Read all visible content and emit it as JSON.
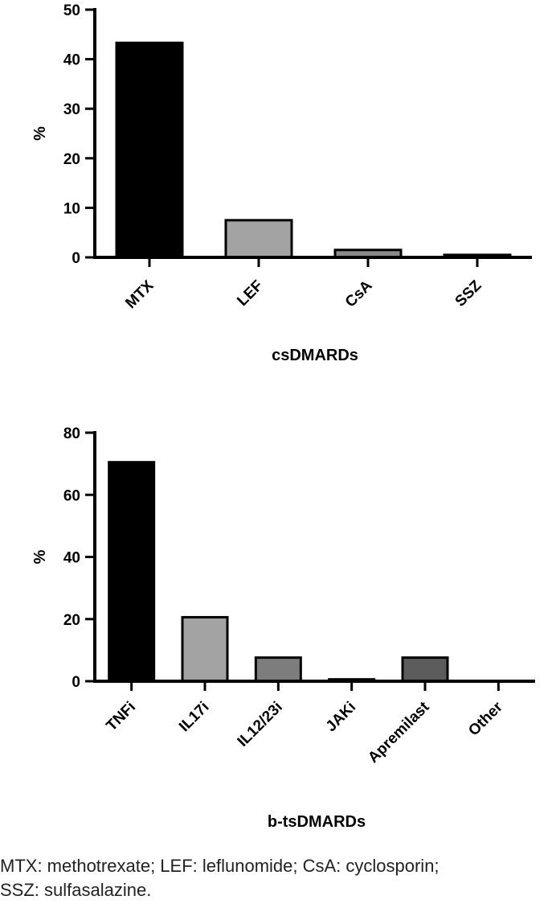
{
  "chart_data": [
    {
      "type": "bar",
      "title": "",
      "xlabel": "csDMARDs",
      "ylabel": "%",
      "ylim": [
        0,
        50
      ],
      "yticks": [
        0,
        10,
        20,
        30,
        40,
        50
      ],
      "categories": [
        "MTX",
        "LEF",
        "CsA",
        "SSZ"
      ],
      "values": [
        43.3,
        7.5,
        1.5,
        0.5
      ],
      "colors": [
        "#000000",
        "#a3a3a3",
        "#8a8a8a",
        "#6e6e6e"
      ],
      "grid": false,
      "legend": "none"
    },
    {
      "type": "bar",
      "title": "",
      "xlabel": "b-tsDMARDs",
      "ylabel": "%",
      "ylim": [
        0,
        80
      ],
      "yticks": [
        0,
        20,
        40,
        60,
        80
      ],
      "categories": [
        "TNFi",
        "IL17i",
        "IL12/23i",
        "JAKi",
        "Apremilast",
        "Other"
      ],
      "values": [
        70.5,
        20.6,
        7.6,
        0.6,
        7.6,
        0
      ],
      "colors": [
        "#000000",
        "#a3a3a3",
        "#7d7d7d",
        "#4a4a4a",
        "#5c5c5c",
        "#ffffff"
      ],
      "grid": false,
      "legend": "none"
    }
  ],
  "footnote": {
    "line1": "MTX: methotrexate; LEF: leflunomide; CsA: cyclosporin;",
    "line2": "SSZ: sulfasalazine."
  }
}
